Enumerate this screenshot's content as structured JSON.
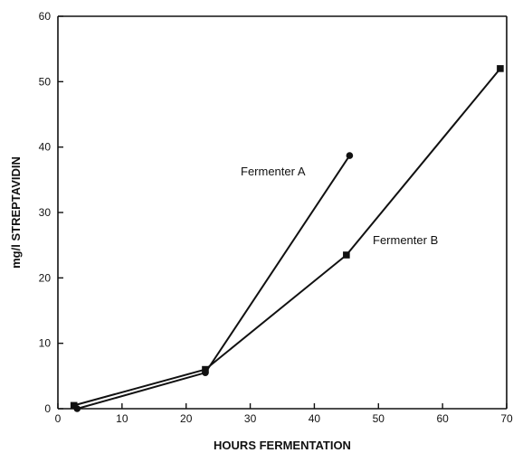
{
  "chart_data": {
    "type": "line",
    "xlabel": "HOURS FERMENTATION",
    "ylabel": "mg/l STREPTAVIDIN",
    "xlim": [
      0,
      70
    ],
    "ylim": [
      0,
      60
    ],
    "x_ticks": [
      "0",
      "10",
      "20",
      "30",
      "40",
      "50",
      "60",
      "70"
    ],
    "y_ticks": [
      "0",
      "10",
      "20",
      "30",
      "40",
      "50",
      "60"
    ],
    "grid": false,
    "series": [
      {
        "name": "Fermenter A",
        "marker": "circle",
        "points": [
          [
            3,
            0
          ],
          [
            23,
            5.5
          ],
          [
            45.5,
            38.7
          ]
        ]
      },
      {
        "name": "Fermenter B",
        "marker": "square",
        "points": [
          [
            2.5,
            0.5
          ],
          [
            23,
            6
          ],
          [
            45,
            23.5
          ],
          [
            69,
            52
          ]
        ]
      }
    ]
  }
}
